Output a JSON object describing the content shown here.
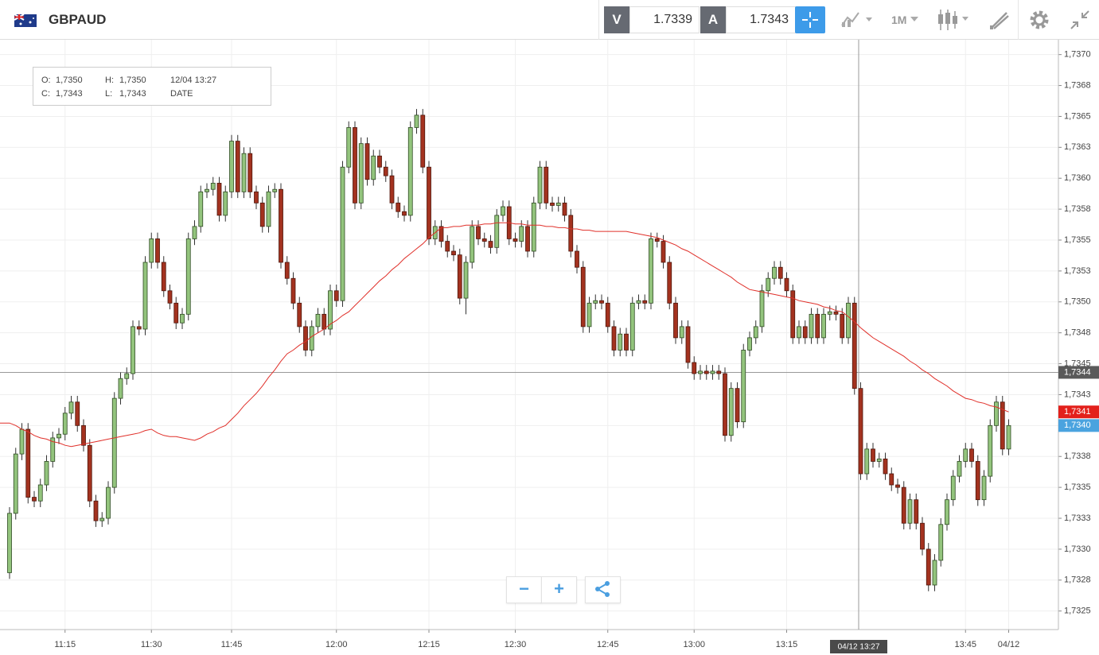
{
  "toolbar": {
    "symbol": "GBPAUD",
    "sell_label": "V",
    "sell_price": 1.7339,
    "buy_label": "A",
    "buy_price": 1.7343,
    "timeframe": "1M"
  },
  "ohlc_box": {
    "o_label": "O:",
    "o": "1,7350",
    "h_label": "H:",
    "h": "1,7350",
    "c_label": "C:",
    "c": "1,7343",
    "l_label": "L:",
    "l": "1,7343",
    "date": "12/04 13:27",
    "date_label": "DATE"
  },
  "chart_data": {
    "type": "candlestick",
    "categories": [
      null,
      null,
      null,
      null,
      null,
      null,
      null,
      null,
      null,
      "11:15",
      null,
      null,
      null,
      null,
      null,
      null,
      null,
      null,
      null,
      null,
      null,
      null,
      null,
      "11:30",
      null,
      null,
      null,
      null,
      null,
      null,
      null,
      null,
      null,
      null,
      null,
      null,
      "11:45",
      null,
      null,
      null,
      null,
      null,
      null,
      null,
      null,
      null,
      null,
      null,
      null,
      null,
      null,
      null,
      null,
      "12:00",
      null,
      null,
      null,
      null,
      null,
      null,
      null,
      null,
      null,
      null,
      null,
      null,
      null,
      null,
      "12:15",
      null,
      null,
      null,
      null,
      null,
      null,
      null,
      null,
      null,
      null,
      null,
      null,
      null,
      "12:30",
      null,
      null,
      null,
      null,
      null,
      null,
      null,
      null,
      null,
      null,
      null,
      null,
      null,
      null,
      "12:45",
      null,
      null,
      null,
      null,
      null,
      null,
      null,
      null,
      null,
      null,
      null,
      null,
      null,
      "13:00",
      null,
      null,
      null,
      null,
      null,
      null,
      null,
      null,
      null,
      null,
      null,
      null,
      null,
      null,
      "13:15",
      null,
      null,
      null,
      null,
      null,
      null,
      null,
      null,
      null,
      null,
      null,
      null,
      null,
      null,
      null,
      null,
      null,
      null,
      null,
      null,
      null,
      null,
      null,
      null,
      null,
      null,
      null,
      null,
      "13:45",
      null,
      null,
      null,
      null,
      null,
      null,
      "04/12"
    ],
    "open": [
      1.73281,
      1.73329,
      1.73377,
      1.73397,
      1.73342,
      1.73339,
      1.73352,
      1.73371,
      1.7339,
      1.73393,
      1.7341,
      1.73419,
      1.734,
      1.73384,
      1.73339,
      1.73323,
      1.73325,
      1.7335,
      1.73422,
      1.73438,
      1.73442,
      1.7348,
      1.73478,
      1.73532,
      1.73551,
      1.73532,
      1.73509,
      1.73499,
      1.73483,
      1.7349,
      1.73551,
      1.73561,
      1.73589,
      1.73591,
      1.73596,
      1.7357,
      1.73589,
      1.7363,
      1.73589,
      1.7362,
      1.73589,
      1.7358,
      1.73561,
      1.73589,
      1.73591,
      1.73532,
      1.73519,
      1.73499,
      1.7348,
      1.73461,
      1.7348,
      1.7349,
      1.73478,
      1.73509,
      1.73501,
      1.73609,
      1.73641,
      1.7358,
      1.73628,
      1.73599,
      1.73618,
      1.73609,
      1.73602,
      1.7358,
      1.73573,
      1.7357,
      1.73641,
      1.73651,
      1.73609,
      1.73551,
      1.73561,
      1.73549,
      1.73541,
      1.73538,
      1.73503,
      1.73532,
      1.73561,
      1.73551,
      1.73549,
      1.73544,
      1.7357,
      1.73577,
      1.73551,
      1.73549,
      1.73561,
      1.73541,
      1.7358,
      1.73609,
      1.7358,
      1.73578,
      1.7358,
      1.7357,
      1.73541,
      1.73528,
      1.7348,
      1.73499,
      1.73501,
      1.73499,
      1.7348,
      1.73461,
      1.73474,
      1.73461,
      1.73499,
      1.73501,
      1.73499,
      1.73551,
      1.73549,
      1.73532,
      1.73499,
      1.73471,
      1.7348,
      1.73451,
      1.73442,
      1.73444,
      1.73442,
      1.73444,
      1.73442,
      1.73392,
      1.7343,
      1.73403,
      1.73461,
      1.73471,
      1.7348,
      1.73509,
      1.73519,
      1.73528,
      1.73519,
      1.73509,
      1.73471,
      1.7348,
      1.73471,
      1.7349,
      1.73471,
      1.7349,
      1.73492,
      1.7349,
      1.73471,
      1.73499,
      1.7343,
      1.73361,
      1.73381,
      1.73371,
      1.73373,
      1.73361,
      1.73352,
      1.7335,
      1.73321,
      1.7334,
      1.73321,
      1.733,
      1.73271,
      1.73291,
      1.7332,
      1.7334,
      1.73359,
      1.73371,
      1.73381,
      1.73371,
      1.7334,
      1.73359,
      1.734,
      1.73419,
      1.73381
    ],
    "high": [
      1.73334,
      1.73382,
      1.73402,
      1.73402,
      1.73347,
      1.73357,
      1.73376,
      1.73395,
      1.73398,
      1.73415,
      1.73424,
      1.73424,
      1.73405,
      1.73389,
      1.73344,
      1.7333,
      1.73355,
      1.73427,
      1.73443,
      1.73447,
      1.73485,
      1.73485,
      1.73537,
      1.73556,
      1.73556,
      1.73537,
      1.73514,
      1.73504,
      1.73495,
      1.73556,
      1.73566,
      1.73594,
      1.73596,
      1.73601,
      1.73601,
      1.73594,
      1.73635,
      1.73635,
      1.73625,
      1.73625,
      1.73594,
      1.73585,
      1.73594,
      1.73596,
      1.73596,
      1.73537,
      1.73524,
      1.73504,
      1.73485,
      1.73485,
      1.73495,
      1.73495,
      1.73514,
      1.73514,
      1.73614,
      1.73646,
      1.73646,
      1.73633,
      1.73633,
      1.73623,
      1.73623,
      1.73614,
      1.73607,
      1.73585,
      1.73578,
      1.73646,
      1.73656,
      1.73656,
      1.73614,
      1.73566,
      1.73566,
      1.73554,
      1.73546,
      1.73543,
      1.73537,
      1.73566,
      1.73566,
      1.73556,
      1.73554,
      1.73575,
      1.73582,
      1.73582,
      1.73556,
      1.73566,
      1.73566,
      1.73585,
      1.73614,
      1.73614,
      1.73585,
      1.73585,
      1.73585,
      1.73575,
      1.73546,
      1.73533,
      1.73504,
      1.73506,
      1.73506,
      1.73504,
      1.73485,
      1.73479,
      1.73479,
      1.73504,
      1.73506,
      1.73506,
      1.73556,
      1.73556,
      1.73554,
      1.73537,
      1.73504,
      1.73485,
      1.73485,
      1.73456,
      1.73449,
      1.73449,
      1.73449,
      1.73449,
      1.73447,
      1.73435,
      1.73435,
      1.73466,
      1.73476,
      1.73485,
      1.73514,
      1.73524,
      1.73533,
      1.73533,
      1.73524,
      1.73514,
      1.73485,
      1.73485,
      1.73495,
      1.73495,
      1.73495,
      1.73497,
      1.73497,
      1.73495,
      1.73504,
      1.73504,
      1.73435,
      1.73386,
      1.73386,
      1.73378,
      1.73378,
      1.73366,
      1.73357,
      1.73355,
      1.73345,
      1.73345,
      1.73326,
      1.73305,
      1.73296,
      1.73325,
      1.73345,
      1.73364,
      1.73376,
      1.73386,
      1.73386,
      1.73376,
      1.73364,
      1.73405,
      1.73424,
      1.73424,
      1.73405
    ],
    "low": [
      1.73276,
      1.73324,
      1.73372,
      1.73337,
      1.73334,
      1.73334,
      1.73347,
      1.73366,
      1.73385,
      1.73388,
      1.73405,
      1.73395,
      1.73379,
      1.73334,
      1.73318,
      1.73318,
      1.7332,
      1.73345,
      1.73417,
      1.73433,
      1.73437,
      1.73473,
      1.73473,
      1.73527,
      1.73527,
      1.73504,
      1.73494,
      1.73478,
      1.73478,
      1.73485,
      1.73546,
      1.73556,
      1.73584,
      1.73586,
      1.73565,
      1.73565,
      1.73584,
      1.73584,
      1.73584,
      1.73584,
      1.73575,
      1.73556,
      1.73556,
      1.73584,
      1.73527,
      1.73514,
      1.73494,
      1.73475,
      1.73456,
      1.73456,
      1.73475,
      1.73473,
      1.73473,
      1.73496,
      1.73496,
      1.73604,
      1.73575,
      1.73575,
      1.73594,
      1.73594,
      1.73604,
      1.73597,
      1.73575,
      1.73568,
      1.73565,
      1.73565,
      1.73636,
      1.73604,
      1.73546,
      1.73546,
      1.73544,
      1.73536,
      1.73533,
      1.73498,
      1.7349,
      1.73527,
      1.73546,
      1.73544,
      1.73539,
      1.73539,
      1.73565,
      1.73546,
      1.73544,
      1.73544,
      1.73536,
      1.73536,
      1.73575,
      1.73575,
      1.73573,
      1.73573,
      1.73565,
      1.73536,
      1.73523,
      1.73475,
      1.73475,
      1.73494,
      1.73494,
      1.73475,
      1.73456,
      1.73456,
      1.73456,
      1.73456,
      1.73494,
      1.73494,
      1.73494,
      1.73544,
      1.73527,
      1.73494,
      1.73466,
      1.73466,
      1.73446,
      1.73437,
      1.73437,
      1.73437,
      1.73437,
      1.73437,
      1.73387,
      1.73387,
      1.73398,
      1.73398,
      1.73456,
      1.73466,
      1.73475,
      1.73504,
      1.73514,
      1.73514,
      1.73504,
      1.73466,
      1.73466,
      1.73466,
      1.73466,
      1.73466,
      1.73466,
      1.73485,
      1.73485,
      1.73466,
      1.73466,
      1.73425,
      1.73356,
      1.73356,
      1.73366,
      1.73366,
      1.73356,
      1.73347,
      1.73345,
      1.73316,
      1.73316,
      1.73316,
      1.73295,
      1.73266,
      1.73266,
      1.73286,
      1.73315,
      1.73335,
      1.73354,
      1.73366,
      1.73366,
      1.73335,
      1.73335,
      1.73354,
      1.73395,
      1.73376,
      1.73376
    ],
    "close": [
      1.73329,
      1.73377,
      1.73397,
      1.73342,
      1.73339,
      1.73352,
      1.73371,
      1.7339,
      1.73393,
      1.7341,
      1.73419,
      1.734,
      1.73384,
      1.73339,
      1.73323,
      1.73325,
      1.7335,
      1.73422,
      1.73438,
      1.73442,
      1.7348,
      1.73478,
      1.73532,
      1.73551,
      1.73532,
      1.73509,
      1.73499,
      1.73483,
      1.7349,
      1.73551,
      1.73561,
      1.73589,
      1.73591,
      1.73596,
      1.7357,
      1.73589,
      1.7363,
      1.73589,
      1.7362,
      1.73589,
      1.7358,
      1.73561,
      1.73589,
      1.73591,
      1.73532,
      1.73519,
      1.73499,
      1.7348,
      1.73461,
      1.7348,
      1.7349,
      1.73478,
      1.73509,
      1.73501,
      1.73609,
      1.73641,
      1.7358,
      1.73628,
      1.73599,
      1.73618,
      1.73609,
      1.73602,
      1.7358,
      1.73573,
      1.7357,
      1.73641,
      1.73651,
      1.73609,
      1.73551,
      1.73561,
      1.73549,
      1.73541,
      1.73538,
      1.73503,
      1.73532,
      1.73561,
      1.73551,
      1.73549,
      1.73544,
      1.7357,
      1.73577,
      1.73551,
      1.73549,
      1.73561,
      1.73541,
      1.7358,
      1.73609,
      1.7358,
      1.73578,
      1.7358,
      1.7357,
      1.73541,
      1.73528,
      1.7348,
      1.73499,
      1.73501,
      1.73499,
      1.7348,
      1.73461,
      1.73474,
      1.73461,
      1.73499,
      1.73501,
      1.73499,
      1.73551,
      1.73549,
      1.73532,
      1.73499,
      1.73471,
      1.7348,
      1.73451,
      1.73442,
      1.73444,
      1.73442,
      1.73444,
      1.73442,
      1.73392,
      1.7343,
      1.73403,
      1.73461,
      1.73471,
      1.7348,
      1.73509,
      1.73519,
      1.73528,
      1.73519,
      1.73509,
      1.73471,
      1.7348,
      1.73471,
      1.7349,
      1.73471,
      1.7349,
      1.73492,
      1.7349,
      1.73471,
      1.73499,
      1.7343,
      1.73361,
      1.73381,
      1.73371,
      1.73373,
      1.73361,
      1.73352,
      1.7335,
      1.73321,
      1.7334,
      1.73321,
      1.733,
      1.73271,
      1.73291,
      1.7332,
      1.7334,
      1.73359,
      1.73371,
      1.73381,
      1.73371,
      1.7334,
      1.73359,
      1.734,
      1.73419,
      1.73381,
      1.734
    ],
    "up_color": "#93c47d",
    "down_color": "#a3321f",
    "ma": {
      "color": "#e0302a",
      "label_color": "#e3201b",
      "last_label": "1,7341",
      "values": [
        1.73402,
        1.734,
        1.73397,
        1.73395,
        1.73392,
        1.7339,
        1.73389,
        1.73387,
        1.73386,
        1.73384,
        1.73383,
        1.73384,
        1.73385,
        1.73386,
        1.73387,
        1.73388,
        1.73389,
        1.7339,
        1.73391,
        1.73392,
        1.73393,
        1.73394,
        1.73396,
        1.73397,
        1.73394,
        1.73392,
        1.73391,
        1.73391,
        1.7339,
        1.73389,
        1.73388,
        1.7339,
        1.73393,
        1.73395,
        1.73398,
        1.734,
        1.73405,
        1.7341,
        1.73416,
        1.73421,
        1.73426,
        1.73432,
        1.73439,
        1.73445,
        1.73452,
        1.73458,
        1.73461,
        1.73465,
        1.73468,
        1.73472,
        1.73475,
        1.73478,
        1.73482,
        1.73485,
        1.73489,
        1.73492,
        1.73497,
        1.73502,
        1.73507,
        1.73512,
        1.73517,
        1.73521,
        1.73526,
        1.7353,
        1.73535,
        1.73539,
        1.73543,
        1.73547,
        1.73552,
        1.73556,
        1.7356,
        1.7356,
        1.73561,
        1.73561,
        1.73562,
        1.73562,
        1.73562,
        1.73563,
        1.73563,
        1.73564,
        1.73564,
        1.73564,
        1.73563,
        1.73563,
        1.73562,
        1.73562,
        1.73562,
        1.73561,
        1.73561,
        1.7356,
        1.7356,
        1.73559,
        1.73559,
        1.73558,
        1.73558,
        1.73557,
        1.73557,
        1.73557,
        1.73557,
        1.73557,
        1.73557,
        1.73556,
        1.73555,
        1.73554,
        1.73553,
        1.73552,
        1.7355,
        1.73548,
        1.73546,
        1.73543,
        1.73541,
        1.73538,
        1.73535,
        1.73532,
        1.73529,
        1.73526,
        1.73523,
        1.7352,
        1.73516,
        1.73513,
        1.7351,
        1.73509,
        1.73508,
        1.73507,
        1.73506,
        1.73505,
        1.73504,
        1.73503,
        1.73501,
        1.735,
        1.73499,
        1.73498,
        1.73496,
        1.73495,
        1.73493,
        1.73492,
        1.73488,
        1.73484,
        1.73479,
        1.73475,
        1.73471,
        1.73468,
        1.73465,
        1.73462,
        1.73459,
        1.73456,
        1.73452,
        1.73449,
        1.73445,
        1.73442,
        1.73438,
        1.73435,
        1.73432,
        1.73428,
        1.73425,
        1.73422,
        1.73421,
        1.73419,
        1.73418,
        1.73416,
        1.73415,
        1.73413,
        1.73411
      ]
    },
    "close_label_color": "#4aa3df",
    "close_last_label": "1,7340",
    "crosshair": {
      "value": 1.73443,
      "label": "1,7344",
      "time_label": "04/12 13:27"
    },
    "ylim": [
      1.73235,
      1.73712
    ],
    "yticks": [
      {
        "value": 1.737,
        "label": "1,7370"
      },
      {
        "value": 1.73675,
        "label": "1,7368"
      },
      {
        "value": 1.7365,
        "label": "1,7365"
      },
      {
        "value": 1.73625,
        "label": "1,7363"
      },
      {
        "value": 1.736,
        "label": "1,7360"
      },
      {
        "value": 1.73575,
        "label": "1,7358"
      },
      {
        "value": 1.7355,
        "label": "1,7355"
      },
      {
        "value": 1.73525,
        "label": "1,7353"
      },
      {
        "value": 1.735,
        "label": "1,7350"
      },
      {
        "value": 1.73475,
        "label": "1,7348"
      },
      {
        "value": 1.7345,
        "label": "1,7345"
      },
      {
        "value": 1.73425,
        "label": "1,7343"
      },
      {
        "value": 1.734,
        "label": "1,7340"
      },
      {
        "value": 1.73375,
        "label": "1,7338"
      },
      {
        "value": 1.7335,
        "label": "1,7335"
      },
      {
        "value": 1.73325,
        "label": "1,7333"
      },
      {
        "value": 1.733,
        "label": "1,7330"
      },
      {
        "value": 1.73275,
        "label": "1,7328"
      },
      {
        "value": 1.7325,
        "label": "1,7325"
      }
    ],
    "grid": true
  }
}
